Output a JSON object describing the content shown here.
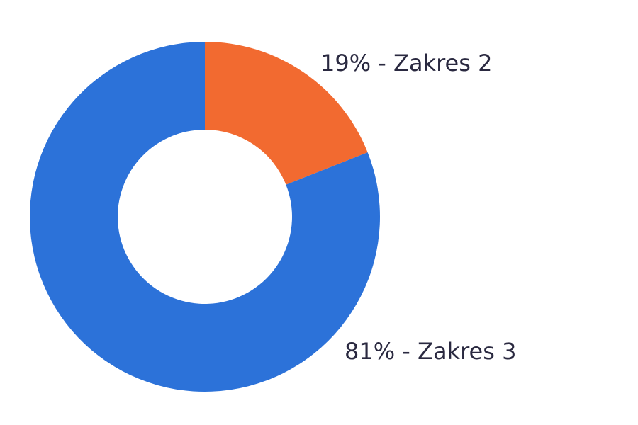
{
  "chart_data": {
    "type": "pie",
    "donut": true,
    "slices": [
      {
        "label": "Zakres 2",
        "value": 19,
        "color": "#f26a30",
        "display": "19% - Zakres 2"
      },
      {
        "label": "Zakres 3",
        "value": 81,
        "color": "#2c72d9",
        "display": "81% - Zakres 3"
      }
    ]
  }
}
